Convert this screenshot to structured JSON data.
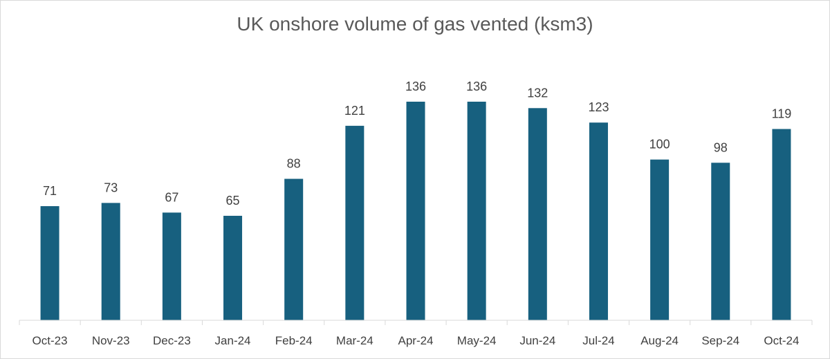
{
  "chart_data": {
    "type": "bar",
    "title": "UK onshore volume of gas vented (ksm3)",
    "categories": [
      "Oct-23",
      "Nov-23",
      "Dec-23",
      "Jan-24",
      "Feb-24",
      "Mar-24",
      "Apr-24",
      "May-24",
      "Jun-24",
      "Jul-24",
      "Aug-24",
      "Sep-24",
      "Oct-24"
    ],
    "values": [
      71,
      73,
      67,
      65,
      88,
      121,
      136,
      136,
      132,
      123,
      100,
      98,
      119
    ],
    "data_labels": [
      "71",
      "73",
      "67",
      "65",
      "88",
      "121",
      "136",
      "136",
      "132",
      "123",
      "100",
      "98",
      "119"
    ],
    "xlabel": "",
    "ylabel": "",
    "ylim": [
      0,
      150
    ],
    "grid": false,
    "legend": "none",
    "bar_color": "#17607F",
    "axis_color": "#d9d9d9"
  }
}
